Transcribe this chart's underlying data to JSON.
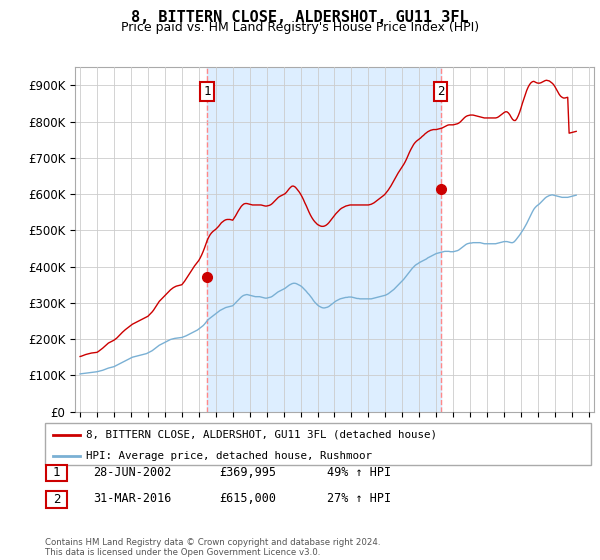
{
  "title": "8, BITTERN CLOSE, ALDERSHOT, GU11 3FL",
  "subtitle": "Price paid vs. HM Land Registry's House Price Index (HPI)",
  "title_fontsize": 11,
  "subtitle_fontsize": 9,
  "ylim": [
    0,
    950000
  ],
  "yticks": [
    0,
    100000,
    200000,
    300000,
    400000,
    500000,
    600000,
    700000,
    800000,
    900000
  ],
  "ytick_labels": [
    "£0",
    "£100K",
    "£200K",
    "£300K",
    "£400K",
    "£500K",
    "£600K",
    "£700K",
    "£800K",
    "£900K"
  ],
  "background_color": "#ffffff",
  "grid_color": "#cccccc",
  "line1_color": "#cc0000",
  "line2_color": "#7ab0d4",
  "vline_color": "#ff8888",
  "shade_color": "#ddeeff",
  "sale1_date": 2002.5,
  "sale1_price": 369995,
  "sale1_label": "1",
  "sale2_date": 2016.25,
  "sale2_price": 615000,
  "sale2_label": "2",
  "legend_line1": "8, BITTERN CLOSE, ALDERSHOT, GU11 3FL (detached house)",
  "legend_line2": "HPI: Average price, detached house, Rushmoor",
  "table_row1": [
    "1",
    "28-JUN-2002",
    "£369,995",
    "49% ↑ HPI"
  ],
  "table_row2": [
    "2",
    "31-MAR-2016",
    "£615,000",
    "27% ↑ HPI"
  ],
  "footer": "Contains HM Land Registry data © Crown copyright and database right 2024.\nThis data is licensed under the Open Government Licence v3.0.",
  "hpi_data_years": [
    1995.0,
    1995.083,
    1995.167,
    1995.25,
    1995.333,
    1995.417,
    1995.5,
    1995.583,
    1995.667,
    1995.75,
    1995.833,
    1995.917,
    1996.0,
    1996.083,
    1996.167,
    1996.25,
    1996.333,
    1996.417,
    1996.5,
    1996.583,
    1996.667,
    1996.75,
    1996.833,
    1996.917,
    1997.0,
    1997.083,
    1997.167,
    1997.25,
    1997.333,
    1997.417,
    1997.5,
    1997.583,
    1997.667,
    1997.75,
    1997.833,
    1997.917,
    1998.0,
    1998.083,
    1998.167,
    1998.25,
    1998.333,
    1998.417,
    1998.5,
    1998.583,
    1998.667,
    1998.75,
    1998.833,
    1998.917,
    1999.0,
    1999.083,
    1999.167,
    1999.25,
    1999.333,
    1999.417,
    1999.5,
    1999.583,
    1999.667,
    1999.75,
    1999.833,
    1999.917,
    2000.0,
    2000.083,
    2000.167,
    2000.25,
    2000.333,
    2000.417,
    2000.5,
    2000.583,
    2000.667,
    2000.75,
    2000.833,
    2000.917,
    2001.0,
    2001.083,
    2001.167,
    2001.25,
    2001.333,
    2001.417,
    2001.5,
    2001.583,
    2001.667,
    2001.75,
    2001.833,
    2001.917,
    2002.0,
    2002.083,
    2002.167,
    2002.25,
    2002.333,
    2002.417,
    2002.5,
    2002.583,
    2002.667,
    2002.75,
    2002.833,
    2002.917,
    2003.0,
    2003.083,
    2003.167,
    2003.25,
    2003.333,
    2003.417,
    2003.5,
    2003.583,
    2003.667,
    2003.75,
    2003.833,
    2003.917,
    2004.0,
    2004.083,
    2004.167,
    2004.25,
    2004.333,
    2004.417,
    2004.5,
    2004.583,
    2004.667,
    2004.75,
    2004.833,
    2004.917,
    2005.0,
    2005.083,
    2005.167,
    2005.25,
    2005.333,
    2005.417,
    2005.5,
    2005.583,
    2005.667,
    2005.75,
    2005.833,
    2005.917,
    2006.0,
    2006.083,
    2006.167,
    2006.25,
    2006.333,
    2006.417,
    2006.5,
    2006.583,
    2006.667,
    2006.75,
    2006.833,
    2006.917,
    2007.0,
    2007.083,
    2007.167,
    2007.25,
    2007.333,
    2007.417,
    2007.5,
    2007.583,
    2007.667,
    2007.75,
    2007.833,
    2007.917,
    2008.0,
    2008.083,
    2008.167,
    2008.25,
    2008.333,
    2008.417,
    2008.5,
    2008.583,
    2008.667,
    2008.75,
    2008.833,
    2008.917,
    2009.0,
    2009.083,
    2009.167,
    2009.25,
    2009.333,
    2009.417,
    2009.5,
    2009.583,
    2009.667,
    2009.75,
    2009.833,
    2009.917,
    2010.0,
    2010.083,
    2010.167,
    2010.25,
    2010.333,
    2010.417,
    2010.5,
    2010.583,
    2010.667,
    2010.75,
    2010.833,
    2010.917,
    2011.0,
    2011.083,
    2011.167,
    2011.25,
    2011.333,
    2011.417,
    2011.5,
    2011.583,
    2011.667,
    2011.75,
    2011.833,
    2011.917,
    2012.0,
    2012.083,
    2012.167,
    2012.25,
    2012.333,
    2012.417,
    2012.5,
    2012.583,
    2012.667,
    2012.75,
    2012.833,
    2012.917,
    2013.0,
    2013.083,
    2013.167,
    2013.25,
    2013.333,
    2013.417,
    2013.5,
    2013.583,
    2013.667,
    2013.75,
    2013.833,
    2013.917,
    2014.0,
    2014.083,
    2014.167,
    2014.25,
    2014.333,
    2014.417,
    2014.5,
    2014.583,
    2014.667,
    2014.75,
    2014.833,
    2014.917,
    2015.0,
    2015.083,
    2015.167,
    2015.25,
    2015.333,
    2015.417,
    2015.5,
    2015.583,
    2015.667,
    2015.75,
    2015.833,
    2015.917,
    2016.0,
    2016.083,
    2016.167,
    2016.25,
    2016.333,
    2016.417,
    2016.5,
    2016.583,
    2016.667,
    2016.75,
    2016.833,
    2016.917,
    2017.0,
    2017.083,
    2017.167,
    2017.25,
    2017.333,
    2017.417,
    2017.5,
    2017.583,
    2017.667,
    2017.75,
    2017.833,
    2017.917,
    2018.0,
    2018.083,
    2018.167,
    2018.25,
    2018.333,
    2018.417,
    2018.5,
    2018.583,
    2018.667,
    2018.75,
    2018.833,
    2018.917,
    2019.0,
    2019.083,
    2019.167,
    2019.25,
    2019.333,
    2019.417,
    2019.5,
    2019.583,
    2019.667,
    2019.75,
    2019.833,
    2019.917,
    2020.0,
    2020.083,
    2020.167,
    2020.25,
    2020.333,
    2020.417,
    2020.5,
    2020.583,
    2020.667,
    2020.75,
    2020.833,
    2020.917,
    2021.0,
    2021.083,
    2021.167,
    2021.25,
    2021.333,
    2021.417,
    2021.5,
    2021.583,
    2021.667,
    2021.75,
    2021.833,
    2021.917,
    2022.0,
    2022.083,
    2022.167,
    2022.25,
    2022.333,
    2022.417,
    2022.5,
    2022.583,
    2022.667,
    2022.75,
    2022.833,
    2022.917,
    2023.0,
    2023.083,
    2023.167,
    2023.25,
    2023.333,
    2023.417,
    2023.5,
    2023.583,
    2023.667,
    2023.75,
    2023.833,
    2023.917,
    2024.0,
    2024.083,
    2024.167,
    2024.25
  ],
  "hpi_data_values": [
    104000,
    104500,
    105000,
    105500,
    106000,
    106500,
    107000,
    107500,
    108000,
    108500,
    109000,
    109500,
    110000,
    111000,
    112000,
    113000,
    114000,
    115500,
    117000,
    118500,
    120000,
    121000,
    122000,
    123000,
    124000,
    126000,
    128000,
    130000,
    132000,
    134000,
    136000,
    138000,
    140000,
    142000,
    144000,
    146000,
    148000,
    150000,
    151000,
    152000,
    153000,
    154000,
    155000,
    156000,
    157000,
    158000,
    159000,
    160000,
    162000,
    164000,
    166000,
    168000,
    171000,
    174000,
    177000,
    180000,
    183000,
    185000,
    187000,
    189000,
    191000,
    193000,
    195000,
    197000,
    199000,
    200000,
    201000,
    202000,
    202500,
    203000,
    203500,
    204000,
    204500,
    206000,
    207500,
    209000,
    211000,
    213000,
    215000,
    217000,
    219000,
    221000,
    223000,
    225000,
    228000,
    231000,
    234000,
    237000,
    241000,
    246000,
    251000,
    255000,
    258000,
    261000,
    264000,
    267000,
    270000,
    273000,
    276000,
    279000,
    281000,
    283000,
    285000,
    287000,
    288000,
    289000,
    290000,
    291000,
    292000,
    296000,
    300000,
    304000,
    308000,
    312000,
    316000,
    319000,
    321000,
    322000,
    323000,
    322000,
    321000,
    320000,
    319000,
    318000,
    317000,
    317000,
    317000,
    317000,
    316000,
    315000,
    314000,
    313000,
    313000,
    314000,
    315000,
    316000,
    318000,
    321000,
    324000,
    327000,
    330000,
    332000,
    334000,
    336000,
    338000,
    340000,
    343000,
    346000,
    349000,
    351000,
    353000,
    354000,
    354000,
    353000,
    351000,
    349000,
    347000,
    344000,
    340000,
    336000,
    332000,
    327000,
    323000,
    318000,
    313000,
    307000,
    302000,
    298000,
    294000,
    291000,
    289000,
    287000,
    286000,
    286000,
    287000,
    288000,
    290000,
    293000,
    296000,
    299000,
    302000,
    305000,
    307000,
    309000,
    311000,
    312000,
    313000,
    314000,
    315000,
    315000,
    316000,
    316000,
    316000,
    315000,
    314000,
    313000,
    312000,
    312000,
    311000,
    311000,
    311000,
    311000,
    311000,
    311000,
    311000,
    311000,
    311000,
    312000,
    313000,
    314000,
    315000,
    316000,
    317000,
    318000,
    319000,
    320000,
    321000,
    323000,
    325000,
    328000,
    331000,
    334000,
    337000,
    341000,
    345000,
    349000,
    353000,
    357000,
    361000,
    365000,
    370000,
    375000,
    380000,
    385000,
    390000,
    395000,
    399000,
    403000,
    406000,
    408000,
    411000,
    413000,
    415000,
    417000,
    419000,
    421000,
    424000,
    426000,
    428000,
    430000,
    432000,
    434000,
    436000,
    437000,
    438000,
    439000,
    440000,
    441000,
    442000,
    442000,
    442000,
    442000,
    441000,
    441000,
    441000,
    442000,
    443000,
    444000,
    446000,
    449000,
    452000,
    455000,
    458000,
    461000,
    463000,
    464000,
    465000,
    465000,
    466000,
    466000,
    466000,
    466000,
    466000,
    466000,
    465000,
    464000,
    463000,
    463000,
    463000,
    463000,
    463000,
    463000,
    463000,
    463000,
    463000,
    464000,
    465000,
    466000,
    467000,
    468000,
    469000,
    469000,
    469000,
    468000,
    467000,
    466000,
    466000,
    468000,
    472000,
    477000,
    482000,
    487000,
    493000,
    499000,
    505000,
    512000,
    519000,
    527000,
    535000,
    543000,
    551000,
    558000,
    563000,
    567000,
    570000,
    573000,
    577000,
    581000,
    585000,
    589000,
    592000,
    594000,
    596000,
    597000,
    598000,
    597000,
    596000,
    595000,
    594000,
    593000,
    592000,
    591000,
    591000,
    591000,
    591000,
    591000,
    592000,
    593000,
    594000,
    595000,
    596000,
    597000
  ],
  "price_data_years": [
    1995.0,
    1995.083,
    1995.167,
    1995.25,
    1995.333,
    1995.417,
    1995.5,
    1995.583,
    1995.667,
    1995.75,
    1995.833,
    1995.917,
    1996.0,
    1996.083,
    1996.167,
    1996.25,
    1996.333,
    1996.417,
    1996.5,
    1996.583,
    1996.667,
    1996.75,
    1996.833,
    1996.917,
    1997.0,
    1997.083,
    1997.167,
    1997.25,
    1997.333,
    1997.417,
    1997.5,
    1997.583,
    1997.667,
    1997.75,
    1997.833,
    1997.917,
    1998.0,
    1998.083,
    1998.167,
    1998.25,
    1998.333,
    1998.417,
    1998.5,
    1998.583,
    1998.667,
    1998.75,
    1998.833,
    1998.917,
    1999.0,
    1999.083,
    1999.167,
    1999.25,
    1999.333,
    1999.417,
    1999.5,
    1999.583,
    1999.667,
    1999.75,
    1999.833,
    1999.917,
    2000.0,
    2000.083,
    2000.167,
    2000.25,
    2000.333,
    2000.417,
    2000.5,
    2000.583,
    2000.667,
    2000.75,
    2000.833,
    2000.917,
    2001.0,
    2001.083,
    2001.167,
    2001.25,
    2001.333,
    2001.417,
    2001.5,
    2001.583,
    2001.667,
    2001.75,
    2001.833,
    2001.917,
    2002.0,
    2002.083,
    2002.167,
    2002.25,
    2002.333,
    2002.417,
    2002.5,
    2002.583,
    2002.667,
    2002.75,
    2002.833,
    2002.917,
    2003.0,
    2003.083,
    2003.167,
    2003.25,
    2003.333,
    2003.417,
    2003.5,
    2003.583,
    2003.667,
    2003.75,
    2003.833,
    2003.917,
    2004.0,
    2004.083,
    2004.167,
    2004.25,
    2004.333,
    2004.417,
    2004.5,
    2004.583,
    2004.667,
    2004.75,
    2004.833,
    2004.917,
    2005.0,
    2005.083,
    2005.167,
    2005.25,
    2005.333,
    2005.417,
    2005.5,
    2005.583,
    2005.667,
    2005.75,
    2005.833,
    2005.917,
    2006.0,
    2006.083,
    2006.167,
    2006.25,
    2006.333,
    2006.417,
    2006.5,
    2006.583,
    2006.667,
    2006.75,
    2006.833,
    2006.917,
    2007.0,
    2007.083,
    2007.167,
    2007.25,
    2007.333,
    2007.417,
    2007.5,
    2007.583,
    2007.667,
    2007.75,
    2007.833,
    2007.917,
    2008.0,
    2008.083,
    2008.167,
    2008.25,
    2008.333,
    2008.417,
    2008.5,
    2008.583,
    2008.667,
    2008.75,
    2008.833,
    2008.917,
    2009.0,
    2009.083,
    2009.167,
    2009.25,
    2009.333,
    2009.417,
    2009.5,
    2009.583,
    2009.667,
    2009.75,
    2009.833,
    2009.917,
    2010.0,
    2010.083,
    2010.167,
    2010.25,
    2010.333,
    2010.417,
    2010.5,
    2010.583,
    2010.667,
    2010.75,
    2010.833,
    2010.917,
    2011.0,
    2011.083,
    2011.167,
    2011.25,
    2011.333,
    2011.417,
    2011.5,
    2011.583,
    2011.667,
    2011.75,
    2011.833,
    2011.917,
    2012.0,
    2012.083,
    2012.167,
    2012.25,
    2012.333,
    2012.417,
    2012.5,
    2012.583,
    2012.667,
    2012.75,
    2012.833,
    2012.917,
    2013.0,
    2013.083,
    2013.167,
    2013.25,
    2013.333,
    2013.417,
    2013.5,
    2013.583,
    2013.667,
    2013.75,
    2013.833,
    2013.917,
    2014.0,
    2014.083,
    2014.167,
    2014.25,
    2014.333,
    2014.417,
    2014.5,
    2014.583,
    2014.667,
    2014.75,
    2014.833,
    2014.917,
    2015.0,
    2015.083,
    2015.167,
    2015.25,
    2015.333,
    2015.417,
    2015.5,
    2015.583,
    2015.667,
    2015.75,
    2015.833,
    2015.917,
    2016.0,
    2016.083,
    2016.167,
    2016.25,
    2016.333,
    2016.417,
    2016.5,
    2016.583,
    2016.667,
    2016.75,
    2016.833,
    2016.917,
    2017.0,
    2017.083,
    2017.167,
    2017.25,
    2017.333,
    2017.417,
    2017.5,
    2017.583,
    2017.667,
    2017.75,
    2017.833,
    2017.917,
    2018.0,
    2018.083,
    2018.167,
    2018.25,
    2018.333,
    2018.417,
    2018.5,
    2018.583,
    2018.667,
    2018.75,
    2018.833,
    2018.917,
    2019.0,
    2019.083,
    2019.167,
    2019.25,
    2019.333,
    2019.417,
    2019.5,
    2019.583,
    2019.667,
    2019.75,
    2019.833,
    2019.917,
    2020.0,
    2020.083,
    2020.167,
    2020.25,
    2020.333,
    2020.417,
    2020.5,
    2020.583,
    2020.667,
    2020.75,
    2020.833,
    2020.917,
    2021.0,
    2021.083,
    2021.167,
    2021.25,
    2021.333,
    2021.417,
    2021.5,
    2021.583,
    2021.667,
    2021.75,
    2021.833,
    2021.917,
    2022.0,
    2022.083,
    2022.167,
    2022.25,
    2022.333,
    2022.417,
    2022.5,
    2022.583,
    2022.667,
    2022.75,
    2022.833,
    2022.917,
    2023.0,
    2023.083,
    2023.167,
    2023.25,
    2023.333,
    2023.417,
    2023.5,
    2023.583,
    2023.667,
    2023.75,
    2023.833,
    2023.917,
    2024.0,
    2024.083,
    2024.167,
    2024.25
  ],
  "price_data_values": [
    152000,
    153000,
    154500,
    156000,
    157500,
    158500,
    159500,
    160500,
    161500,
    162000,
    162500,
    163000,
    163500,
    166000,
    169000,
    172000,
    175000,
    178500,
    182000,
    185500,
    189000,
    191000,
    193000,
    195000,
    197000,
    200000,
    203000,
    207000,
    211000,
    215000,
    219000,
    222500,
    226000,
    229000,
    232000,
    235000,
    238000,
    241000,
    243000,
    245000,
    247000,
    249000,
    251000,
    253000,
    255000,
    257000,
    259000,
    261000,
    263000,
    267000,
    271000,
    275000,
    280000,
    286000,
    292000,
    298000,
    304000,
    308000,
    312000,
    316000,
    320000,
    324000,
    328000,
    332000,
    336000,
    339000,
    342000,
    344000,
    346000,
    347000,
    348000,
    349000,
    350000,
    355000,
    360000,
    366000,
    372000,
    378000,
    384000,
    390000,
    396000,
    402000,
    407000,
    412000,
    417000,
    424000,
    432000,
    441000,
    451000,
    462000,
    473000,
    481000,
    488000,
    493000,
    497000,
    500000,
    503000,
    507000,
    511000,
    516000,
    521000,
    524000,
    527000,
    529000,
    530000,
    530000,
    530000,
    529000,
    528000,
    534000,
    540000,
    547000,
    554000,
    560000,
    566000,
    570000,
    573000,
    574000,
    574000,
    573000,
    572000,
    571000,
    570000,
    570000,
    570000,
    570000,
    570000,
    570000,
    570000,
    569000,
    568000,
    567000,
    567000,
    568000,
    569000,
    571000,
    574000,
    578000,
    582000,
    586000,
    590000,
    593000,
    595000,
    597000,
    599000,
    601000,
    605000,
    610000,
    615000,
    619000,
    622000,
    622000,
    620000,
    616000,
    611000,
    606000,
    600000,
    593000,
    585000,
    576000,
    568000,
    559000,
    550000,
    542000,
    535000,
    529000,
    524000,
    520000,
    516000,
    514000,
    512000,
    511000,
    511000,
    512000,
    514000,
    517000,
    521000,
    526000,
    531000,
    536000,
    541000,
    546000,
    550000,
    554000,
    558000,
    561000,
    563000,
    565000,
    567000,
    568000,
    569000,
    570000,
    570000,
    570000,
    570000,
    570000,
    570000,
    570000,
    570000,
    570000,
    570000,
    570000,
    570000,
    570000,
    570000,
    571000,
    572000,
    574000,
    576000,
    579000,
    582000,
    585000,
    588000,
    591000,
    594000,
    597000,
    601000,
    606000,
    611000,
    617000,
    623000,
    630000,
    637000,
    644000,
    651000,
    658000,
    664000,
    670000,
    676000,
    682000,
    689000,
    697000,
    706000,
    715000,
    723000,
    730000,
    737000,
    742000,
    746000,
    749000,
    752000,
    755000,
    759000,
    762000,
    766000,
    769000,
    772000,
    774000,
    776000,
    777000,
    778000,
    778000,
    778000,
    779000,
    780000,
    781000,
    782000,
    784000,
    786000,
    788000,
    790000,
    791000,
    791000,
    791000,
    791000,
    792000,
    793000,
    794000,
    796000,
    799000,
    803000,
    807000,
    811000,
    814000,
    816000,
    817000,
    818000,
    818000,
    818000,
    817000,
    816000,
    815000,
    814000,
    813000,
    812000,
    811000,
    810000,
    810000,
    810000,
    810000,
    810000,
    810000,
    810000,
    810000,
    810000,
    811000,
    813000,
    816000,
    819000,
    822000,
    825000,
    827000,
    827000,
    824000,
    819000,
    812000,
    806000,
    803000,
    803000,
    808000,
    816000,
    826000,
    838000,
    851000,
    863000,
    875000,
    886000,
    895000,
    902000,
    907000,
    910000,
    911000,
    909000,
    907000,
    906000,
    906000,
    907000,
    909000,
    911000,
    913000,
    914000,
    913000,
    912000,
    909000,
    906000,
    902000,
    896000,
    889000,
    882000,
    875000,
    870000,
    867000,
    865000,
    865000,
    866000,
    867000,
    768000,
    769000,
    770000,
    771000,
    772000,
    773000
  ]
}
